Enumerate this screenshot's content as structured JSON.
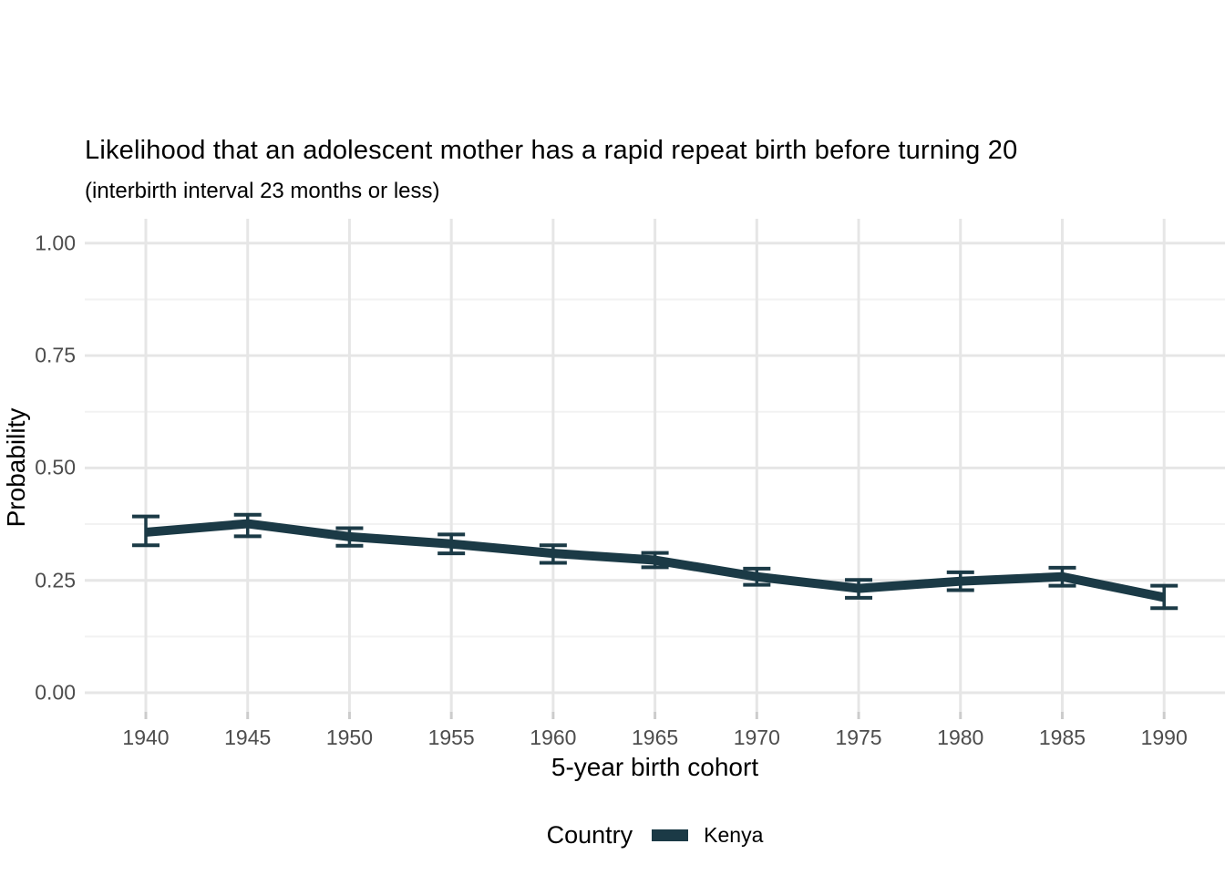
{
  "chart_data": {
    "type": "line",
    "title": "Likelihood that an adolescent mother has a rapid repeat birth before turning 20",
    "subtitle": "(interbirth interval 23 months or less)",
    "xlabel": "5-year birth cohort",
    "ylabel": "Probability",
    "categories": [
      1940,
      1945,
      1950,
      1955,
      1960,
      1965,
      1970,
      1975,
      1980,
      1985,
      1990
    ],
    "x_tick_labels": [
      "1940",
      "1945",
      "1950",
      "1955",
      "1960",
      "1965",
      "1970",
      "1975",
      "1980",
      "1985",
      "1990"
    ],
    "series": [
      {
        "name": "Kenya",
        "color": "#1b3a46",
        "values": [
          0.357,
          0.376,
          0.347,
          0.331,
          0.31,
          0.295,
          0.258,
          0.232,
          0.248,
          0.258,
          0.212
        ],
        "ci_low": [
          0.328,
          0.348,
          0.327,
          0.31,
          0.289,
          0.279,
          0.24,
          0.211,
          0.228,
          0.238,
          0.188
        ],
        "ci_high": [
          0.392,
          0.396,
          0.366,
          0.352,
          0.328,
          0.311,
          0.276,
          0.251,
          0.268,
          0.278,
          0.238
        ]
      }
    ],
    "error_bars": true,
    "ylim": [
      0,
      1
    ],
    "y_major_ticks": [
      {
        "value": 0.0,
        "label": "0.00"
      },
      {
        "value": 0.25,
        "label": "0.25"
      },
      {
        "value": 0.5,
        "label": "0.50"
      },
      {
        "value": 0.75,
        "label": "0.75"
      },
      {
        "value": 1.0,
        "label": "1.00"
      }
    ],
    "y_minor_ticks": [
      0.125,
      0.375,
      0.625,
      0.875
    ],
    "grid": true,
    "legend_position": "bottom"
  },
  "legend": {
    "title": "Country",
    "items": [
      {
        "label": "Kenya",
        "color": "#1b3a46"
      }
    ]
  },
  "colors": {
    "background": "#ffffff",
    "grid_major": "#e6e6e6",
    "grid_minor": "#f2f2f2",
    "axis_tick": "#cccccc",
    "axis_text": "#4d4d4d",
    "title_text": "#000000"
  }
}
